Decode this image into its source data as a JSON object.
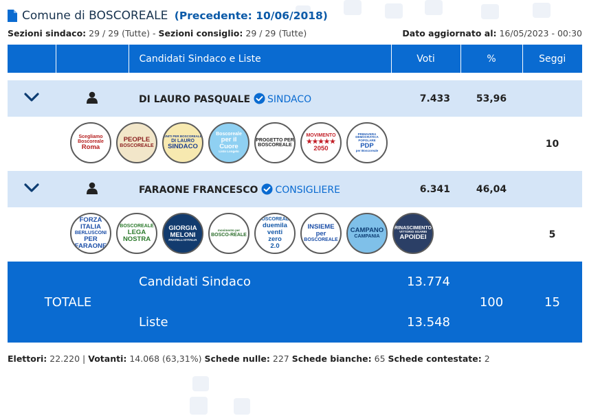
{
  "header": {
    "title": "Comune di BOSCOREALE",
    "previous": "(Precedente: 10/06/2018)"
  },
  "subheader": {
    "sezioni_sindaco_label": "Sezioni sindaco:",
    "sezioni_sindaco_value": "29 / 29 (Tutte)",
    "separator": "-",
    "sezioni_consiglio_label": "Sezioni consiglio:",
    "sezioni_consiglio_value": "29 / 29 (Tutte)",
    "updated_label": "Dato aggiornato al:",
    "updated_value": "16/05/2023 - 00:30"
  },
  "table": {
    "col_candidati": "Candidati Sindaco e Liste",
    "col_voti": "Voti",
    "col_pct": "%",
    "col_seggi": "Seggi"
  },
  "candidates": [
    {
      "name": "DI LAURO PASQUALE",
      "role": "SINDACO",
      "votes": "7.433",
      "pct": "53,96",
      "seggi": "10",
      "lists": [
        {
          "lines": [
            "Scegliamo",
            "Boscoreale",
            "Roma"
          ],
          "bg": "#ffffff",
          "fg": "#b51d1d"
        },
        {
          "lines": [
            "PEOPLE",
            "BOSCOREALE"
          ],
          "bg": "#f2e6c9",
          "fg": "#8b1f1f"
        },
        {
          "lines": [
            "UNITI PER BOSCOREALE",
            "DI LAURO",
            "SINDACO"
          ],
          "bg": "#f7e9b0",
          "fg": "#1d3f8f"
        },
        {
          "lines": [
            "Boscoreale",
            "per il",
            "Cuore",
            "Listo Longelo"
          ],
          "bg": "#8fd0f2",
          "fg": "#ffffff"
        },
        {
          "lines": [
            "PROGETTO PER",
            "BOSCOREALE"
          ],
          "bg": "#ffffff",
          "fg": "#222222"
        },
        {
          "lines": [
            "MOVIMENTO",
            "★★★★★",
            "2050"
          ],
          "bg": "#ffffff",
          "fg": "#c21f27"
        },
        {
          "lines": [
            "PRIMAVERA DEMOCRATICA POPOLARE",
            "PDP",
            "per Boscoreale"
          ],
          "bg": "#ffffff",
          "fg": "#1b57b5"
        }
      ]
    },
    {
      "name": "FARAONE FRANCESCO",
      "role": "CONSIGLIERE",
      "votes": "6.341",
      "pct": "46,04",
      "seggi": "5",
      "lists": [
        {
          "lines": [
            "FORZA",
            "ITALIA",
            "BERLUSCONI",
            "PER",
            "FARAONE"
          ],
          "bg": "#ffffff",
          "fg": "#1c4fa8"
        },
        {
          "lines": [
            "BOSCOREALE",
            "LEGA",
            "NOSTRA"
          ],
          "bg": "#ffffff",
          "fg": "#2c7a2c"
        },
        {
          "lines": [
            "GIORGIA",
            "MELONI",
            "FRATELLI D'ITALIA"
          ],
          "bg": "#123b6e",
          "fg": "#ffffff"
        },
        {
          "lines": [
            "movimento per",
            "BOSCO-REALE"
          ],
          "bg": "#ffffff",
          "fg": "#2c6e2c"
        },
        {
          "lines": [
            "BOSCOREALE",
            "duemila",
            "venti",
            "zero",
            "2.0"
          ],
          "bg": "#ffffff",
          "fg": "#1559a8"
        },
        {
          "lines": [
            "INSIEME",
            "per",
            "BOSCOREALE"
          ],
          "bg": "#ffffff",
          "fg": "#1c4fa8"
        },
        {
          "lines": [
            "CAMPANO",
            "CAMPANIA"
          ],
          "bg": "#7fc0e9",
          "fg": "#0d3d73"
        },
        {
          "lines": [
            "RINASCIMENTO",
            "VITTORIO SGARBI",
            "APOIDEI"
          ],
          "bg": "#2b3f66",
          "fg": "#ffffff"
        }
      ]
    }
  ],
  "totals": {
    "label": "TOTALE",
    "sindaco_label": "Candidati Sindaco",
    "sindaco_votes": "13.774",
    "liste_label": "Liste",
    "liste_votes": "13.548",
    "pct": "100",
    "seggi": "15"
  },
  "footer": {
    "elettori_label": "Elettori:",
    "elettori_value": "22.220",
    "votanti_label": "Votanti:",
    "votanti_value": "14.068 (63,31%)",
    "nulle_label": "Schede nulle:",
    "nulle_value": "227",
    "bianche_label": "Schede bianche:",
    "bianche_value": "65",
    "contestate_label": "Schede contestate:",
    "contestate_value": "2"
  },
  "icons": {
    "doc": "document-icon",
    "expand": "chevron-down-icon",
    "person": "person-icon",
    "verified": "verified-check-icon"
  },
  "colors": {
    "accent": "#0a6bd1",
    "row_bg": "#d5e5f7",
    "title_prev": "#0b5aa8"
  }
}
